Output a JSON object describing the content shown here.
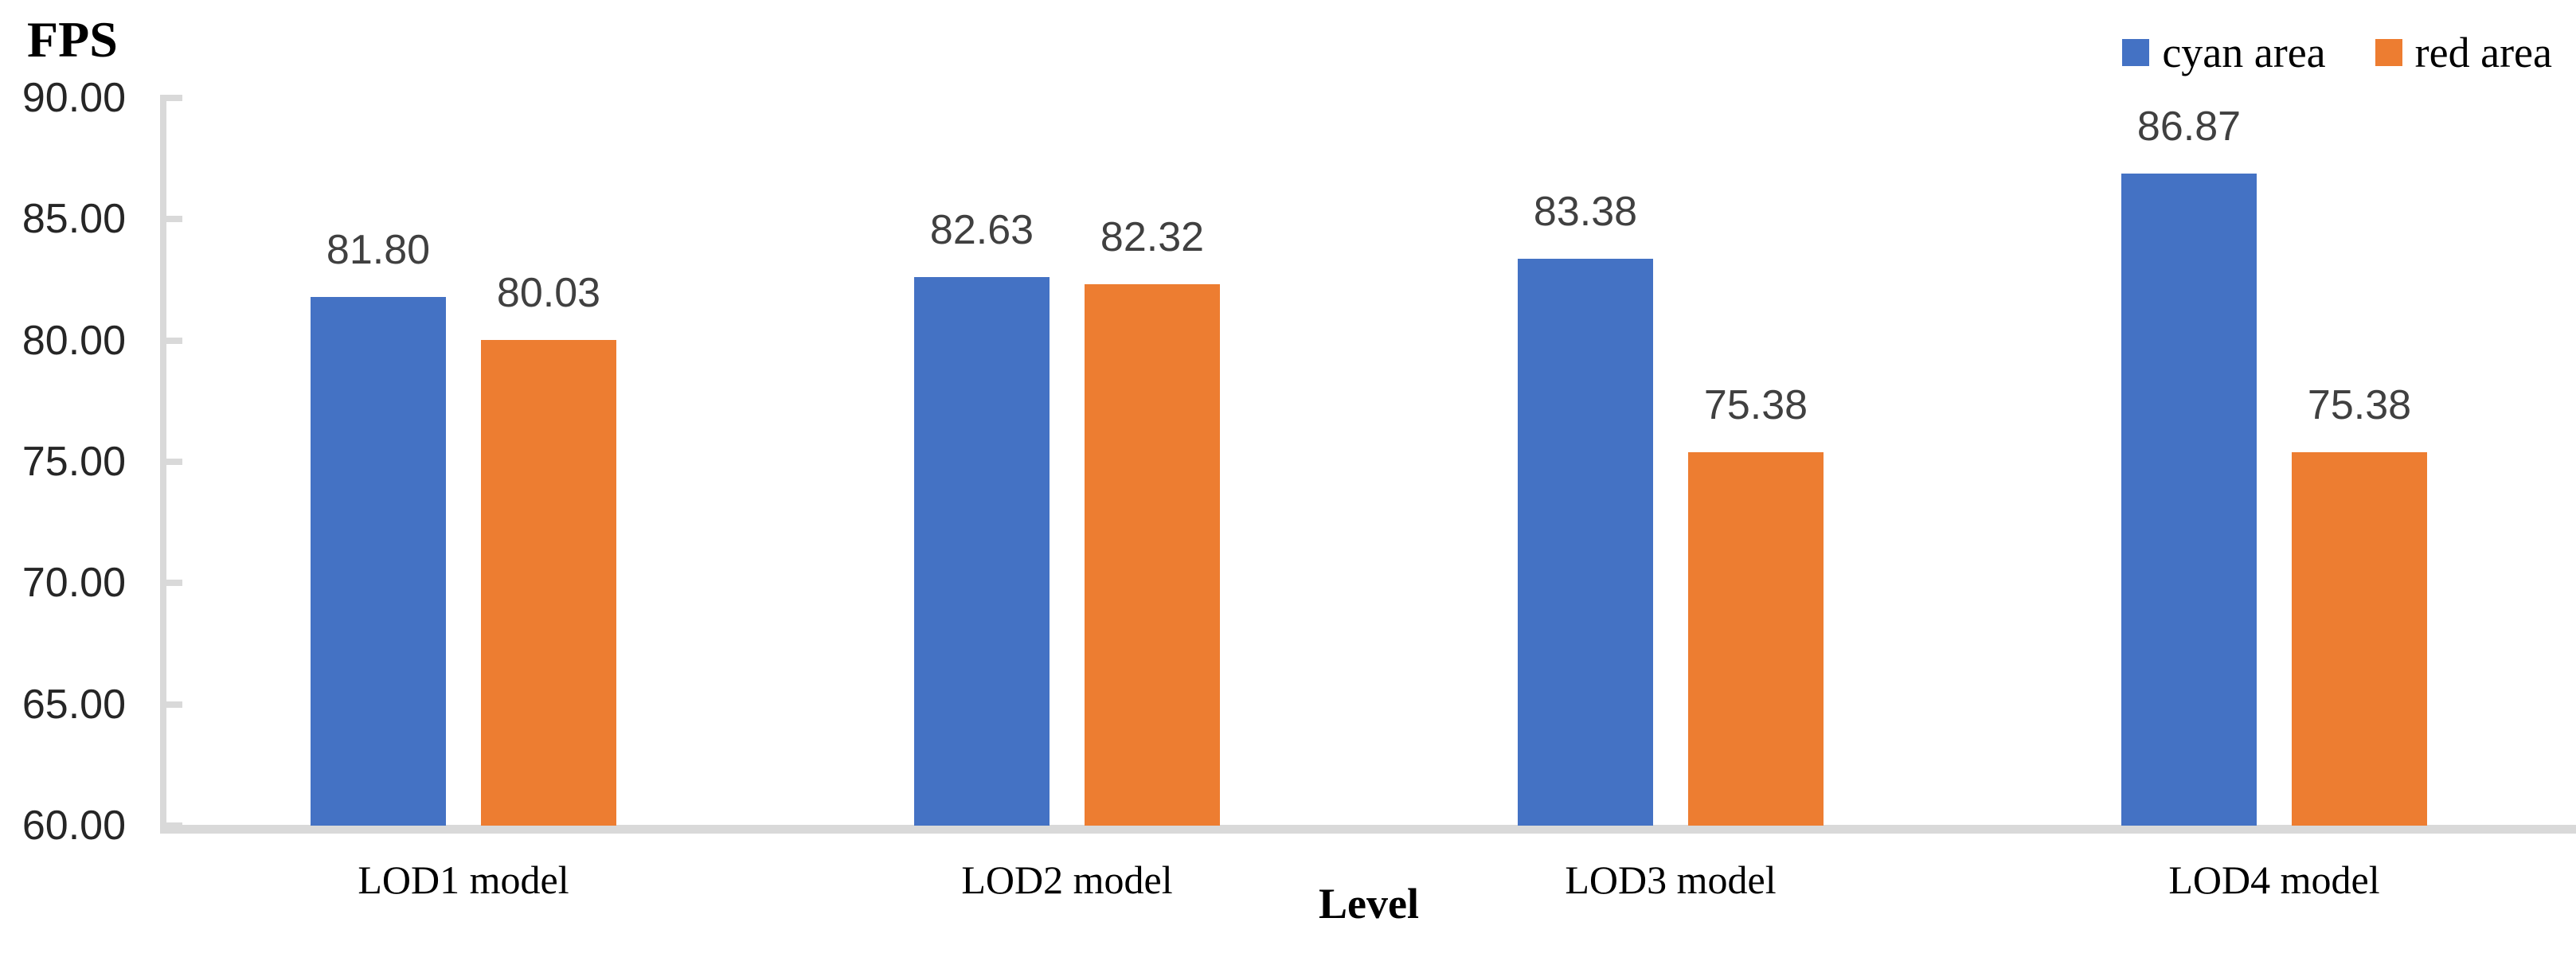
{
  "chart_data": {
    "type": "bar",
    "y_axis_title": "FPS",
    "x_axis_title": "Level",
    "categories": [
      "LOD1 model",
      "LOD2 model",
      "LOD3 model",
      "LOD4 model"
    ],
    "series": [
      {
        "name": "cyan area",
        "color": "#4472C4",
        "values": [
          81.8,
          82.63,
          83.38,
          86.87
        ],
        "labels": [
          "81.80",
          "82.63",
          "83.38",
          "86.87"
        ]
      },
      {
        "name": "red area",
        "color": "#ED7D31",
        "values": [
          80.03,
          82.32,
          75.38,
          75.38
        ],
        "labels": [
          "80.03",
          "82.32",
          "75.38",
          "75.38"
        ]
      }
    ],
    "y_tick_labels": [
      "90.00",
      "85.00",
      "80.00",
      "75.00",
      "70.00",
      "65.00",
      "60.00"
    ],
    "y_tick_values": [
      90,
      85,
      80,
      75,
      70,
      65,
      60
    ],
    "ylim": [
      60,
      90
    ],
    "gridlines": false,
    "legend_position": "top-right",
    "colors": {
      "axis": "#D9D9D9",
      "value_label": "#404040",
      "tick_label": "#262626",
      "text": "#000000"
    }
  }
}
